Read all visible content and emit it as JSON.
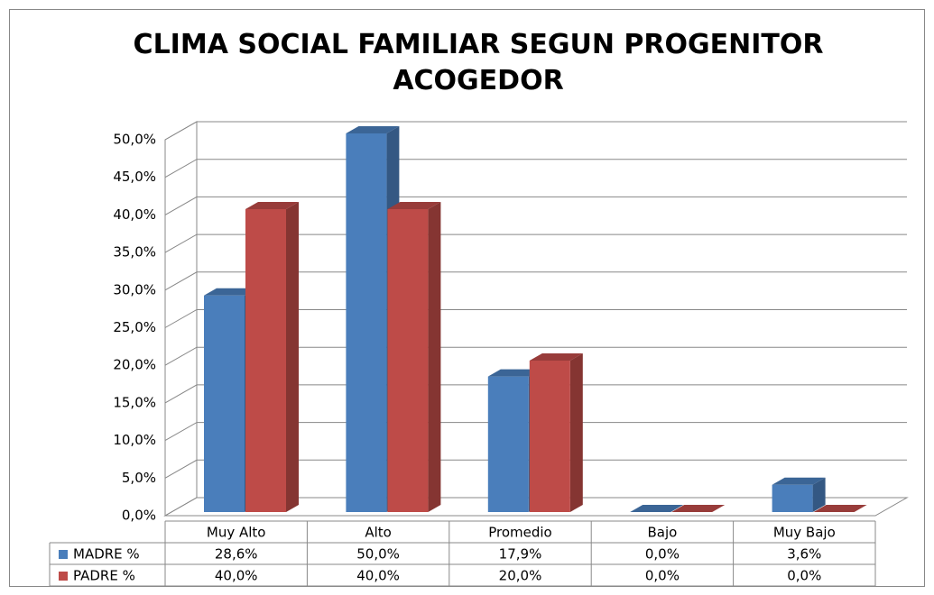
{
  "chart_data": {
    "type": "bar3d",
    "title": "CLIMA SOCIAL FAMILIAR SEGUN PROGENITOR ACOGEDOR",
    "categories": [
      "Muy Alto",
      "Alto",
      "Promedio",
      "Bajo",
      "Muy Bajo"
    ],
    "series": [
      {
        "name": "MADRE %",
        "color": "#4a7ebb",
        "values": [
          28.6,
          50.0,
          17.9,
          0.0,
          3.6
        ],
        "value_labels": [
          "28,6%",
          "50,0%",
          "17,9%",
          "0,0%",
          "3,6%"
        ]
      },
      {
        "name": "PADRE %",
        "color": "#be4b48",
        "values": [
          40.0,
          40.0,
          20.0,
          0.0,
          0.0
        ],
        "value_labels": [
          "40,0%",
          "40,0%",
          "20,0%",
          "0,0%",
          "0,0%"
        ]
      }
    ],
    "ylim": [
      0,
      50
    ],
    "yticks": [
      {
        "value": 0,
        "label": "0,0%"
      },
      {
        "value": 5,
        "label": "5,0%"
      },
      {
        "value": 10,
        "label": "10,0%"
      },
      {
        "value": 15,
        "label": "15,0%"
      },
      {
        "value": 20,
        "label": "20,0%"
      },
      {
        "value": 25,
        "label": "25,0%"
      },
      {
        "value": 30,
        "label": "30,0%"
      },
      {
        "value": 35,
        "label": "35,0%"
      },
      {
        "value": 40,
        "label": "40,0%"
      },
      {
        "value": 45,
        "label": "45,0%"
      },
      {
        "value": 50,
        "label": "50,0%"
      }
    ],
    "grid": true
  }
}
